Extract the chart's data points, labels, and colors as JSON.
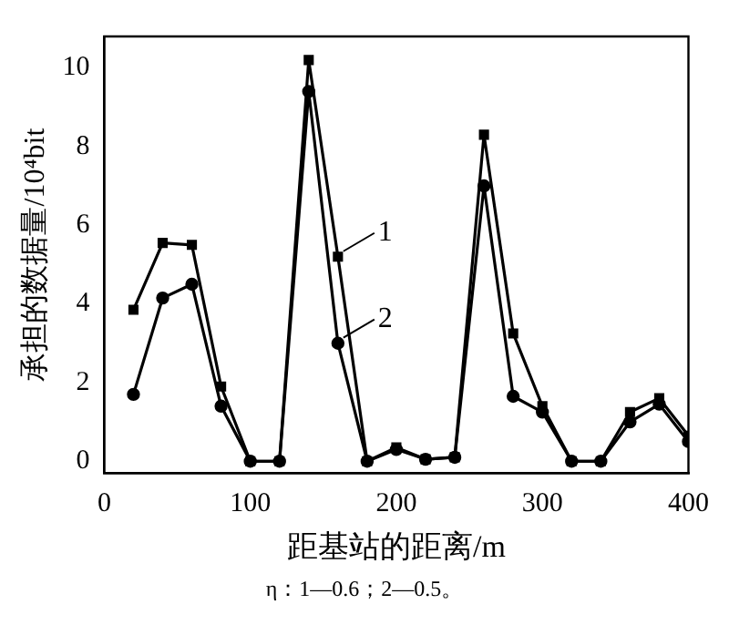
{
  "chart_data": {
    "type": "line",
    "xlabel": "距基站的距离/m",
    "ylabel": "承担的数据量/10⁴bit",
    "annotations": [
      "η：1—0.6；2—0.5。"
    ],
    "x": [
      20,
      40,
      60,
      80,
      100,
      120,
      140,
      160,
      180,
      200,
      220,
      240,
      260,
      280,
      300,
      320,
      340,
      360,
      380,
      400
    ],
    "xlim": [
      0,
      400
    ],
    "xticks": [
      0,
      100,
      200,
      300,
      400
    ],
    "ylim": [
      -0.3,
      10.8
    ],
    "yticks": [
      0,
      2,
      4,
      6,
      8,
      10
    ],
    "grid": false,
    "legend": "right",
    "line_style": "solid",
    "series": [
      {
        "name": "1",
        "color": "#000000",
        "marker": "square",
        "values": [
          3.85,
          5.55,
          5.5,
          1.9,
          0,
          0,
          10.2,
          5.2,
          0,
          0.35,
          0.05,
          0.1,
          8.3,
          3.25,
          1.4,
          0,
          0,
          1.25,
          1.6,
          0.65
        ]
      },
      {
        "name": "2",
        "color": "#000000",
        "marker": "circle",
        "values": [
          1.7,
          4.15,
          4.5,
          1.4,
          0,
          0,
          9.4,
          3.0,
          0,
          0.3,
          0.05,
          0.1,
          7.0,
          1.65,
          1.25,
          0,
          0,
          1.0,
          1.45,
          0.5
        ]
      }
    ]
  }
}
